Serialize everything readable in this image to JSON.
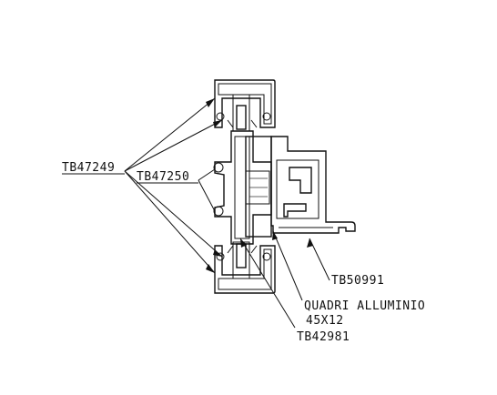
{
  "labels": {
    "tb47249": "TB47249",
    "tb47250": "TB47250",
    "tb50991": "TB50991",
    "quadri_line1": "QUADRI ALLUMINIO",
    "quadri_line2": "45X12",
    "tb42981": "TB42981"
  }
}
